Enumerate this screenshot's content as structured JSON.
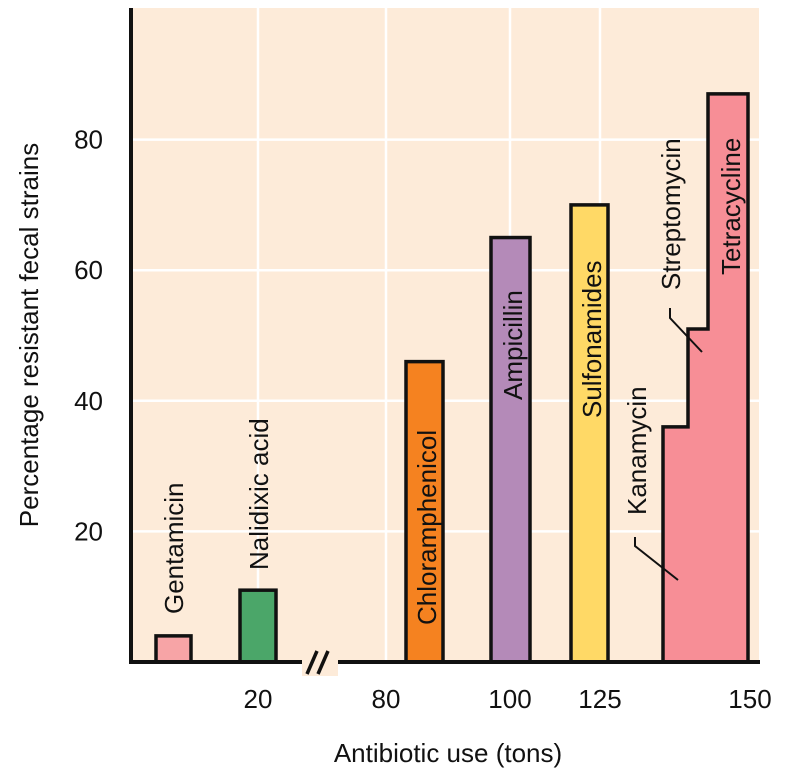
{
  "chart_data": {
    "type": "bar",
    "xlabel": "Antibiotic use (tons)",
    "ylabel": "Percentage resistant fecal strains",
    "ylim": [
      0,
      100
    ],
    "y_ticks": [
      "20",
      "40",
      "60",
      "80"
    ],
    "y_tick_values": [
      20,
      40,
      60,
      80
    ],
    "x_ticks": [
      "20",
      "80",
      "100",
      "125",
      "150"
    ],
    "axis_break": true,
    "grid": true,
    "background_color": "#fdebd9",
    "bars": [
      {
        "label": "Gentamicin",
        "x": 5,
        "value": 4,
        "color": "#f7a4a6"
      },
      {
        "label": "Nalidixic acid",
        "x": 20,
        "value": 11,
        "color": "#4ba669"
      },
      {
        "label": "Chloramphenicol",
        "x": 90,
        "value": 46,
        "color": "#f58220"
      },
      {
        "label": "Ampicillin",
        "x": 100,
        "value": 65,
        "color": "#b48ab8"
      },
      {
        "label": "Sulfonamides",
        "x": 115,
        "value": 70,
        "color": "#ffd966"
      },
      {
        "label": "Kanamycin",
        "x": 132,
        "value": 36,
        "color": "#f78e96"
      },
      {
        "label": "Streptomycin",
        "x": 137,
        "value": 51,
        "color": "#f78e96"
      },
      {
        "label": "Tetracycline",
        "x": 145,
        "value": 87,
        "color": "#f78e96"
      }
    ]
  }
}
